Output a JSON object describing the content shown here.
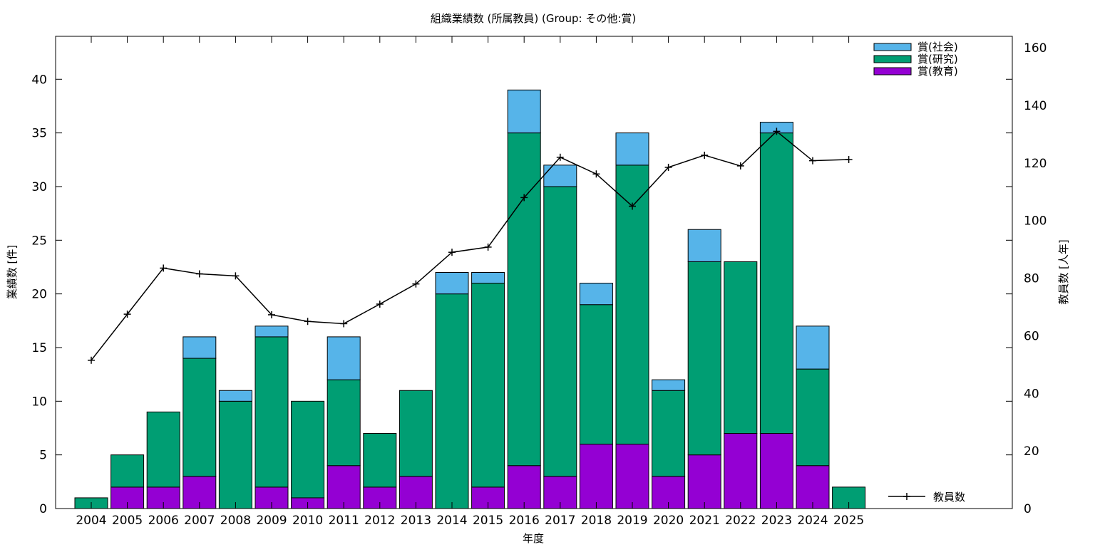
{
  "chart_data": {
    "type": "bar",
    "stacked": true,
    "title": "組織業績数 (所属教員) (Group: その他:賞)",
    "xlabel": "年度",
    "ylabel": "業績数 [件]",
    "y2label": "教員数 [人年]",
    "categories": [
      "2004",
      "2005",
      "2006",
      "2007",
      "2008",
      "2009",
      "2010",
      "2011",
      "2012",
      "2013",
      "2014",
      "2015",
      "2016",
      "2017",
      "2018",
      "2019",
      "2020",
      "2021",
      "2022",
      "2023",
      "2024",
      "2025"
    ],
    "ylim": [
      0,
      44
    ],
    "y2lim": [
      0,
      164
    ],
    "yticks": [
      0,
      5,
      10,
      15,
      20,
      25,
      30,
      35,
      40
    ],
    "y2ticks": [
      0,
      20,
      40,
      60,
      80,
      100,
      120,
      140,
      160
    ],
    "grid": false,
    "legend_position": "top-right",
    "series": [
      {
        "name": "賞(教育)",
        "color": "#9400d3",
        "values": [
          0,
          2,
          2,
          3,
          0,
          2,
          1,
          4,
          2,
          3,
          0,
          2,
          4,
          3,
          6,
          6,
          3,
          5,
          7,
          7,
          4,
          0
        ]
      },
      {
        "name": "賞(研究)",
        "color": "#009e73",
        "values": [
          1,
          3,
          7,
          11,
          10,
          14,
          9,
          8,
          5,
          8,
          20,
          19,
          31,
          27,
          13,
          26,
          8,
          18,
          16,
          28,
          9,
          2
        ]
      },
      {
        "name": "賞(社会)",
        "color": "#56b4e9",
        "values": [
          0,
          0,
          0,
          2,
          1,
          1,
          0,
          4,
          0,
          0,
          2,
          1,
          4,
          2,
          2,
          3,
          1,
          3,
          0,
          1,
          4,
          0
        ]
      }
    ],
    "line_series": {
      "name": "教員数",
      "axis": "y2",
      "color": "#000000",
      "values": [
        51.5,
        67.5,
        83.5,
        81.5,
        80.8,
        67.3,
        65,
        64.2,
        71,
        78,
        89,
        90.8,
        108,
        122,
        116.2,
        105,
        118.5,
        122.7,
        119,
        131,
        120.8,
        121.2
      ]
    }
  }
}
